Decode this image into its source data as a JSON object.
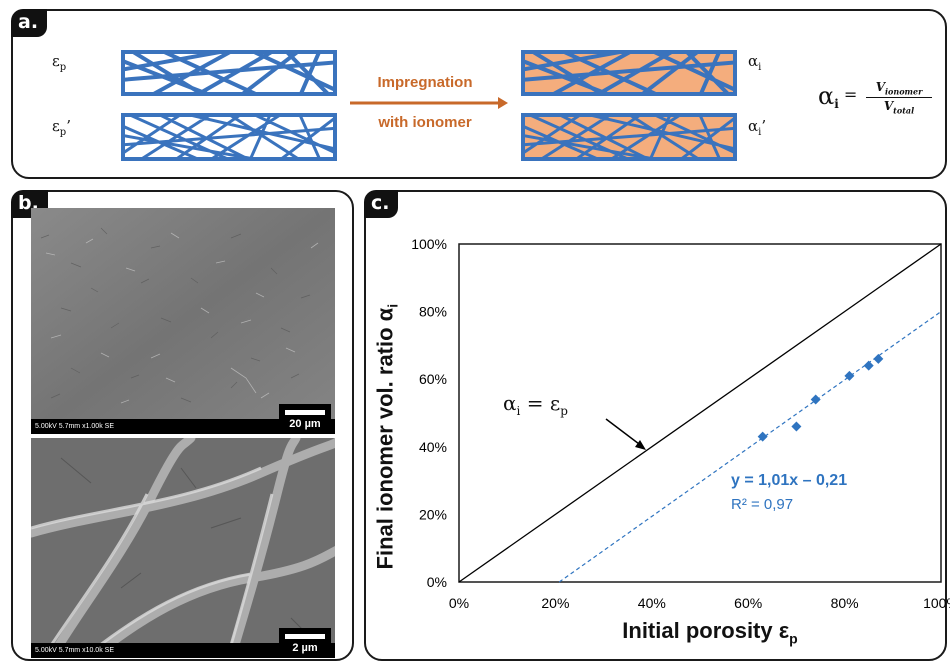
{
  "panel_a": {
    "tag": "a.",
    "eps_p": "ε",
    "eps_p_sub": "p",
    "eps_p2": "ε",
    "eps_p2_sub": "p",
    "eps_p2_prime": "’",
    "arrow_top": "Impregnation",
    "arrow_bottom": "with ionomer",
    "alpha_i": "α",
    "alpha_i_sub": "i",
    "alpha_i2": "α",
    "alpha_i2_sub": "i",
    "alpha_i2_prime": "’",
    "eq_lhs": "α",
    "eq_lhs_sub": "i",
    "eq_eq": "=",
    "eq_num": "V",
    "eq_num_sub": "ionomer",
    "eq_den": "V",
    "eq_den_sub": "total",
    "colors": {
      "mesh": "#3a73bd",
      "fill": "#f4ad7d",
      "arrow": "#c8692a"
    }
  },
  "panel_b": {
    "tag": "b.",
    "top_info": "5.00kV 5.7mm x1.00k SE",
    "top_scale": "20 µm",
    "bottom_info": "5.00kV 5.7mm x10.0k SE",
    "bottom_scale": "2 µm"
  },
  "panel_c": {
    "tag": "c.",
    "line_label": "α",
    "line_label_sub": "i",
    "line_label_rhs": " = ε",
    "line_label_rhs_sub": "p",
    "fit_equation": "y = 1,01x – 0,21",
    "r_squared": "R² = 0,97"
  },
  "chart_data": {
    "type": "scatter",
    "xlabel": "Initial porosity ε",
    "xlabel_sub": "p",
    "ylabel": "Final ionomer vol. ratio α",
    "ylabel_sub": "i",
    "xlim": [
      0,
      100
    ],
    "ylim": [
      0,
      100
    ],
    "x_ticks": [
      "0%",
      "20%",
      "40%",
      "60%",
      "80%",
      "100%"
    ],
    "y_ticks": [
      "0%",
      "20%",
      "40%",
      "60%",
      "80%",
      "100%"
    ],
    "series": [
      {
        "x": [
          63,
          70,
          74,
          81,
          85,
          87
        ],
        "y": [
          43,
          46,
          54,
          61,
          64,
          66
        ]
      }
    ],
    "reference_line": {
      "x": [
        0,
        100
      ],
      "y": [
        0,
        100
      ]
    },
    "fit": {
      "slope": 1.01,
      "intercept": -0.21
    },
    "colors": {
      "points": "#2f74c0",
      "fit": "#2f74c0",
      "reference": "#000000"
    }
  }
}
